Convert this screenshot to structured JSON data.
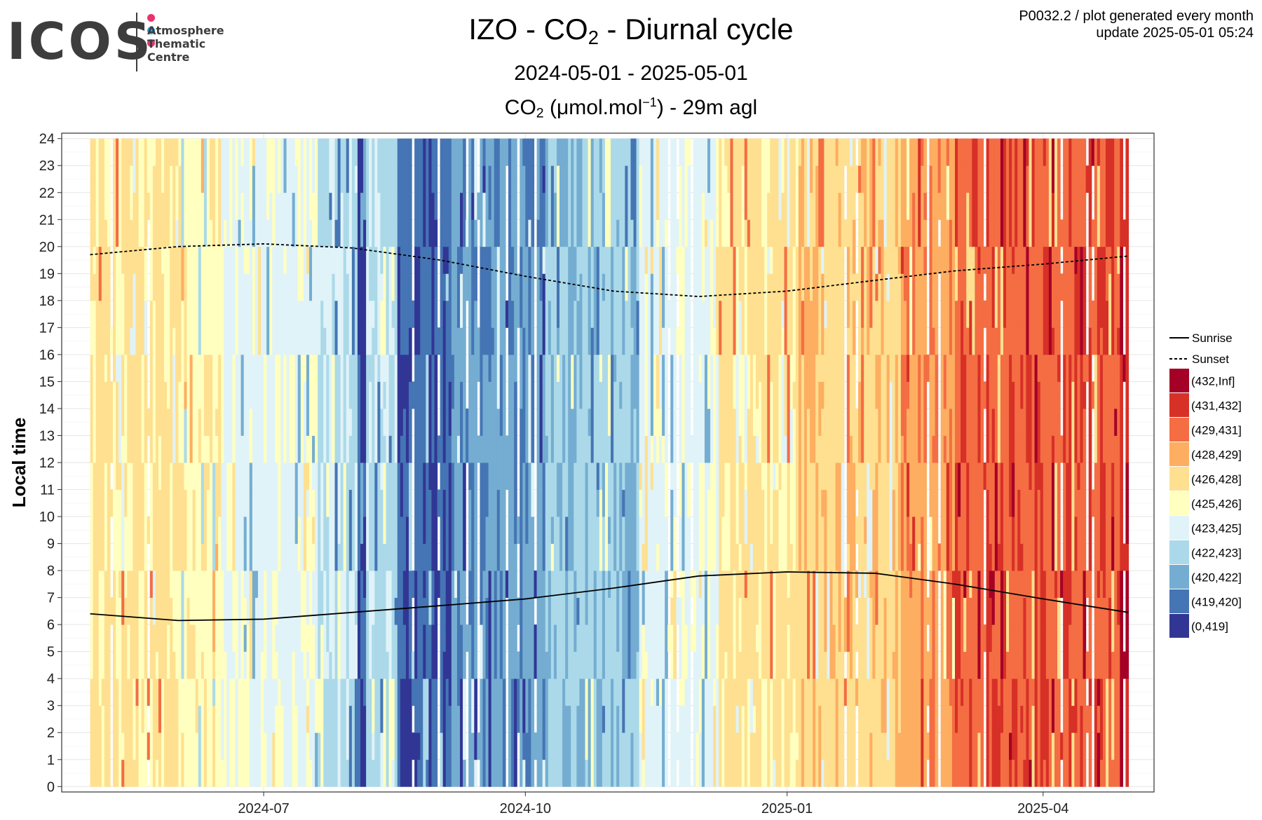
{
  "logo": {
    "word": "ICOS",
    "lines": [
      "Atmosphere",
      "Thematic",
      "Centre"
    ],
    "dot_colors": [
      "#e8336e",
      "#2aa6e0",
      "#e8336e"
    ]
  },
  "header": {
    "title_prefix": "IZO - CO",
    "title_sub": "2",
    "title_suffix": " - Diurnal cycle",
    "date_range": "2024-05-01 - 2025-05-01",
    "sub_prefix": "CO",
    "sub_sub": "2",
    "sub_unit": " (μmol.mol",
    "sub_sup": "−1",
    "sub_suffix": ") - 29m agl",
    "note_line1": "P0032.2 / plot generated every month",
    "note_line2": "update  2025-05-01 05:24"
  },
  "chart_data": {
    "type": "heatmap",
    "ylabel": "Local time",
    "x_range": [
      "2024-04-21",
      "2025-05-10"
    ],
    "ylim": [
      -0.2,
      24.2
    ],
    "yticks": [
      0,
      1,
      2,
      3,
      4,
      5,
      6,
      7,
      8,
      9,
      10,
      11,
      12,
      13,
      14,
      15,
      16,
      17,
      18,
      19,
      20,
      21,
      22,
      23,
      24
    ],
    "xticks": [
      {
        "date": "2024-07-01",
        "label": "2024-07"
      },
      {
        "date": "2024-10-01",
        "label": "2024-10"
      },
      {
        "date": "2025-01-01",
        "label": "2025-01"
      },
      {
        "date": "2025-04-01",
        "label": "2025-04"
      }
    ],
    "grid": true,
    "legend_position": "right",
    "lines": [
      {
        "name": "Sunrise",
        "style": "solid"
      },
      {
        "name": "Sunset",
        "style": "dotted"
      }
    ],
    "sunrise": {
      "dates": [
        "2024-05-01",
        "2024-06-01",
        "2024-07-01",
        "2024-08-01",
        "2024-09-01",
        "2024-10-01",
        "2024-11-01",
        "2024-12-01",
        "2025-01-01",
        "2025-02-01",
        "2025-03-01",
        "2025-04-01",
        "2025-05-01"
      ],
      "hours": [
        6.4,
        6.15,
        6.2,
        6.45,
        6.7,
        6.95,
        7.35,
        7.8,
        7.95,
        7.9,
        7.5,
        6.95,
        6.45
      ]
    },
    "sunset": {
      "dates": [
        "2024-05-01",
        "2024-06-01",
        "2024-07-01",
        "2024-08-01",
        "2024-09-01",
        "2024-10-01",
        "2024-11-01",
        "2024-12-01",
        "2025-01-01",
        "2025-02-01",
        "2025-03-01",
        "2025-04-01",
        "2025-05-01"
      ],
      "hours": [
        19.7,
        20.0,
        20.1,
        19.95,
        19.5,
        18.9,
        18.35,
        18.15,
        18.35,
        18.75,
        19.1,
        19.35,
        19.65
      ]
    },
    "color_bins": [
      {
        "label": "(432,Inf]",
        "color": "#a50026"
      },
      {
        "label": "(431,432]",
        "color": "#d73027"
      },
      {
        "label": "(429,431]",
        "color": "#f46d43"
      },
      {
        "label": "(428,429]",
        "color": "#fdae61"
      },
      {
        "label": "(426,428]",
        "color": "#fee090"
      },
      {
        "label": "(425,426]",
        "color": "#ffffbf"
      },
      {
        "label": "(423,425]",
        "color": "#e0f3f8"
      },
      {
        "label": "(422,423]",
        "color": "#abd9e9"
      },
      {
        "label": "(420,422]",
        "color": "#74add1"
      },
      {
        "label": "(419,420]",
        "color": "#4575b4"
      },
      {
        "label": "(0,419]",
        "color": "#313695"
      }
    ],
    "periods": [
      {
        "start": "2024-05-01",
        "end": "2024-06-01",
        "bin": 4,
        "secondary": 5
      },
      {
        "start": "2024-06-01",
        "end": "2024-06-16",
        "bin": 5,
        "secondary": 4
      },
      {
        "start": "2024-06-16",
        "end": "2024-07-20",
        "bin": 6,
        "secondary": 5
      },
      {
        "start": "2024-07-20",
        "end": "2024-08-03",
        "bin": 7,
        "secondary": 6
      },
      {
        "start": "2024-08-03",
        "end": "2024-08-06",
        "bin": 10,
        "secondary": 9
      },
      {
        "start": "2024-08-06",
        "end": "2024-08-17",
        "bin": 7,
        "secondary": 6
      },
      {
        "start": "2024-08-17",
        "end": "2024-09-05",
        "bin": 9,
        "secondary": 10
      },
      {
        "start": "2024-09-05",
        "end": "2024-10-08",
        "bin": 8,
        "secondary": 9
      },
      {
        "start": "2024-10-08",
        "end": "2024-11-10",
        "bin": 7,
        "secondary": 8
      },
      {
        "start": "2024-11-10",
        "end": "2024-12-08",
        "bin": 6,
        "secondary": 5
      },
      {
        "start": "2024-12-08",
        "end": "2025-01-05",
        "bin": 4,
        "secondary": 5
      },
      {
        "start": "2025-01-05",
        "end": "2025-02-10",
        "bin": 4,
        "secondary": 3
      },
      {
        "start": "2025-02-10",
        "end": "2025-03-01",
        "bin": 3,
        "secondary": 2
      },
      {
        "start": "2025-03-01",
        "end": "2025-04-28",
        "bin": 2,
        "secondary": 1
      },
      {
        "start": "2025-04-28",
        "end": "2025-05-01",
        "bin": 1,
        "secondary": 0
      }
    ]
  }
}
